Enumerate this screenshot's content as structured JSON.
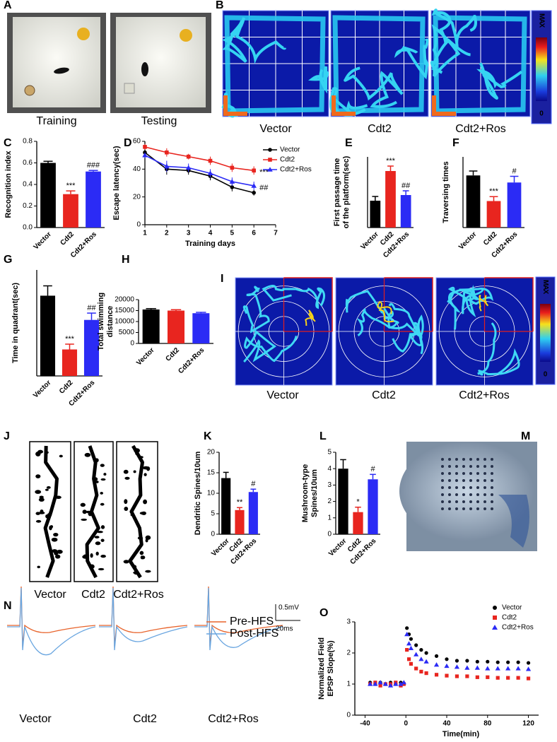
{
  "figures": [
    {
      "panel": "A",
      "captions": [
        "Training",
        "Testing"
      ]
    },
    {
      "panel": "B",
      "captions": [
        "Vector",
        "Cdt2",
        "Cdt2+Ros"
      ],
      "colorbar": [
        "MAX",
        "0"
      ]
    },
    {
      "panel": "I",
      "captions": [
        "Vector",
        "Cdt2",
        "Cdt2+Ros"
      ],
      "colorbar": [
        "MAX",
        "0"
      ]
    },
    {
      "panel": "J",
      "captions": [
        "Vector",
        "Cdt2",
        "Cdt2+Ros"
      ]
    },
    {
      "panel": "M"
    },
    {
      "panel": "N",
      "captions": [
        "Vector",
        "Cdt2",
        "Cdt2+Ros"
      ],
      "scale": [
        "0.5mV",
        "20ms"
      ],
      "legend": [
        {
          "name": "Pre-HFS",
          "color": "#e8642c"
        },
        {
          "name": "Post-HFS",
          "color": "#6aa6e0"
        }
      ]
    }
  ],
  "chart_data": [
    {
      "panel": "C",
      "type": "bar",
      "y_label": "Recognition index",
      "categories": [
        "Vector",
        "Cdt2",
        "Cdt2+Ros"
      ],
      "values": [
        0.6,
        0.31,
        0.52
      ],
      "errors": [
        0.015,
        0.03,
        0.01
      ],
      "colors": [
        "#000000",
        "#e8251f",
        "#2b2bf5"
      ],
      "annotations": [
        null,
        "***",
        "###"
      ],
      "ylim": [
        0,
        0.8
      ],
      "yticks": [
        {
          "value": 0,
          "label": "0.0"
        },
        0.2,
        0.4,
        0.6,
        0.8
      ]
    },
    {
      "panel": "D",
      "type": "line",
      "x_label": "Training days",
      "y_label": "Escape latency(sec)",
      "x": [
        1,
        2,
        3,
        4,
        5,
        6
      ],
      "series": [
        {
          "name": "Vector",
          "color": "#000000",
          "marker": "circle",
          "values": [
            52,
            40,
            39,
            35,
            27,
            23
          ],
          "errors": [
            2,
            4,
            3,
            3,
            3,
            2
          ]
        },
        {
          "name": "Cdt2",
          "color": "#e8251f",
          "marker": "square",
          "values": [
            56,
            52,
            49,
            46,
            41,
            39
          ],
          "errors": [
            2,
            3,
            2,
            3,
            3,
            3
          ],
          "annotation": "***"
        },
        {
          "name": "Cdt2+Ros",
          "color": "#2b2bf5",
          "marker": "triangle",
          "values": [
            50,
            42,
            41,
            37,
            31,
            28
          ],
          "errors": [
            2,
            4,
            3,
            3,
            3,
            3
          ],
          "annotation": "##"
        }
      ],
      "xlim": [
        1,
        7
      ],
      "xticks": [
        1,
        2,
        3,
        4,
        5,
        6,
        7
      ],
      "ylim": [
        0,
        60
      ],
      "yticks": [
        0,
        20,
        40,
        60
      ]
    },
    {
      "panel": "E",
      "type": "bar",
      "y_label": [
        "First passage time",
        "of the platform(sec)"
      ],
      "categories": [
        "Vector",
        "Cdt2",
        "Cdt2+Ros"
      ],
      "values": [
        19,
        40,
        23
      ],
      "errors": [
        3,
        3.5,
        3
      ],
      "colors": [
        "#000000",
        "#e8251f",
        "#2b2bf5"
      ],
      "annotations": [
        null,
        "***",
        "##"
      ],
      "ylim": [
        0,
        50
      ]
    },
    {
      "panel": "F",
      "type": "bar",
      "y_label": "Traversing times",
      "categories": [
        "Vector",
        "Cdt2",
        "Cdt2+Ros"
      ],
      "values": [
        2.95,
        1.5,
        2.55
      ],
      "errors": [
        0.25,
        0.25,
        0.35
      ],
      "colors": [
        "#000000",
        "#e8251f",
        "#2b2bf5"
      ],
      "annotations": [
        null,
        "***",
        "#"
      ],
      "ylim": [
        0,
        4
      ]
    },
    {
      "panel": "G",
      "type": "bar",
      "y_label": "Time in quadrant(sec)",
      "categories": [
        "Vector",
        "Cdt2",
        "Cdt2+Ros"
      ],
      "values": [
        5.3,
        1.75,
        3.7
      ],
      "errors": [
        0.65,
        0.35,
        0.45
      ],
      "colors": [
        "#000000",
        "#e8251f",
        "#2b2bf5"
      ],
      "annotations": [
        null,
        "***",
        "##"
      ],
      "ylim": [
        0,
        7
      ]
    },
    {
      "panel": "H",
      "type": "bar",
      "y_label": [
        "Total swimming",
        "distance"
      ],
      "categories": [
        "Vector",
        "Cdt2",
        "Cdt2+Ros"
      ],
      "values": [
        15500,
        15000,
        13800
      ],
      "errors": [
        400,
        400,
        400
      ],
      "colors": [
        "#000000",
        "#e8251f",
        "#2b2bf5"
      ],
      "ylim": [
        0,
        20000
      ],
      "yticks": [
        0,
        5000,
        10000,
        15000,
        20000
      ]
    },
    {
      "panel": "K",
      "type": "bar",
      "y_label": "Dendritic Spines/10um",
      "categories": [
        "Vector",
        "Cdt2",
        "Cdt2+Ros"
      ],
      "values": [
        13.7,
        5.9,
        10.3
      ],
      "errors": [
        1.4,
        0.6,
        0.7
      ],
      "colors": [
        "#000000",
        "#e8251f",
        "#2b2bf5"
      ],
      "annotations": [
        null,
        "**",
        "#"
      ],
      "ylim": [
        0,
        20
      ],
      "yticks": [
        0,
        5,
        10,
        15,
        20
      ]
    },
    {
      "panel": "L",
      "type": "bar",
      "y_label": [
        "Mushroom-type",
        "Spines/10um"
      ],
      "categories": [
        "Vector",
        "Cdt2",
        "Cdt2+Ros"
      ],
      "values": [
        4.0,
        1.35,
        3.35
      ],
      "errors": [
        0.55,
        0.3,
        0.3
      ],
      "colors": [
        "#000000",
        "#e8251f",
        "#2b2bf5"
      ],
      "annotations": [
        null,
        "*",
        "#"
      ],
      "ylim": [
        0,
        5
      ],
      "yticks": [
        0,
        1,
        2,
        3,
        4,
        5
      ]
    },
    {
      "panel": "O",
      "type": "scatter",
      "x_label": "Time(min)",
      "y_label": [
        "Normalized Field",
        "EPSP Slope(%)"
      ],
      "x": [
        -35,
        -30,
        -25,
        -20,
        -15,
        -10,
        -5,
        -2,
        1,
        3,
        5,
        10,
        15,
        20,
        30,
        40,
        50,
        60,
        70,
        80,
        90,
        100,
        110,
        120
      ],
      "series": [
        {
          "name": "Vector",
          "color": "#000000",
          "marker": "circle",
          "values": [
            1.05,
            1.0,
            1.05,
            1.0,
            1.05,
            1.0,
            1.05,
            1.0,
            2.8,
            2.6,
            2.45,
            2.25,
            2.1,
            2.0,
            1.9,
            1.8,
            1.75,
            1.75,
            1.72,
            1.72,
            1.7,
            1.7,
            1.7,
            1.68
          ]
        },
        {
          "name": "Cdt2",
          "color": "#e8251f",
          "marker": "square",
          "values": [
            1.0,
            1.05,
            0.95,
            1.0,
            1.0,
            1.05,
            0.95,
            1.0,
            2.1,
            1.8,
            1.65,
            1.5,
            1.4,
            1.35,
            1.3,
            1.27,
            1.25,
            1.25,
            1.22,
            1.22,
            1.2,
            1.2,
            1.2,
            1.18
          ]
        },
        {
          "name": "Cdt2+Ros",
          "color": "#2b2bf5",
          "marker": "triangle",
          "values": [
            1.0,
            1.0,
            1.05,
            1.0,
            0.95,
            1.0,
            1.0,
            1.05,
            2.6,
            2.3,
            2.15,
            1.95,
            1.8,
            1.72,
            1.62,
            1.58,
            1.55,
            1.52,
            1.52,
            1.5,
            1.5,
            1.5,
            1.5,
            1.48
          ]
        }
      ],
      "xlim": [
        -50,
        130
      ],
      "xticks": [
        -40,
        0,
        40,
        80,
        120
      ],
      "ylim": [
        0,
        3
      ],
      "yticks": [
        0,
        1,
        2,
        3
      ]
    }
  ]
}
